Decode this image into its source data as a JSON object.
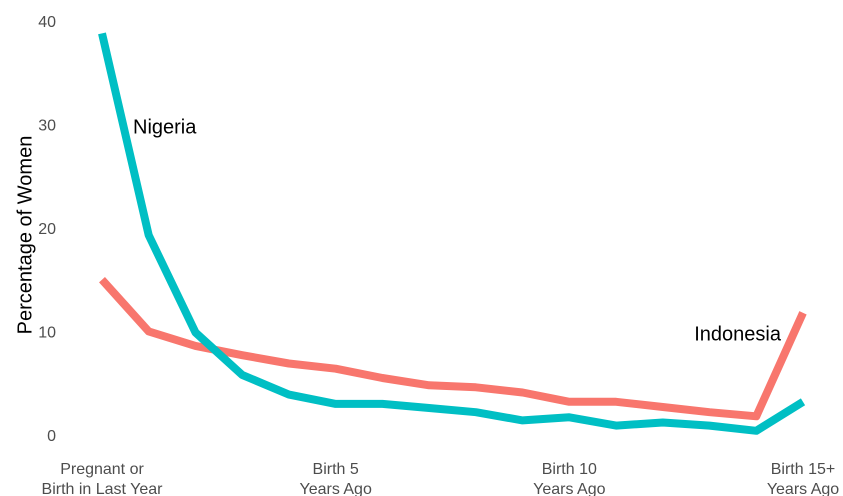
{
  "chart_data": {
    "type": "line",
    "title": "",
    "xlabel": "",
    "ylabel": "Percentage of Women",
    "ylim": [
      0,
      40
    ],
    "yticks": [
      0,
      10,
      20,
      30,
      40
    ],
    "grid": false,
    "legend": "none",
    "x": [
      0,
      1,
      2,
      3,
      4,
      5,
      6,
      7,
      8,
      9,
      10,
      11,
      12,
      13,
      14,
      15
    ],
    "xtick_positions": [
      0,
      5,
      10,
      15
    ],
    "xtick_labels": [
      [
        "Pregnant or",
        "Birth in Last Year"
      ],
      [
        "Birth 5",
        "Years Ago"
      ],
      [
        "Birth 10",
        "Years Ago"
      ],
      [
        "Birth 15+",
        "Years Ago"
      ]
    ],
    "series": [
      {
        "name": "Indonesia",
        "color": "#F8766D",
        "values": [
          15.2,
          10.2,
          8.8,
          7.9,
          7.1,
          6.6,
          5.7,
          5.0,
          4.8,
          4.3,
          3.4,
          3.4,
          2.9,
          2.4,
          2.0,
          12.0
        ]
      },
      {
        "name": "Nigeria",
        "color": "#00BFC4",
        "values": [
          39.0,
          19.5,
          10.1,
          6.0,
          4.1,
          3.2,
          3.2,
          2.8,
          2.4,
          1.6,
          1.9,
          1.1,
          1.4,
          1.1,
          0.6,
          3.4
        ]
      }
    ]
  }
}
